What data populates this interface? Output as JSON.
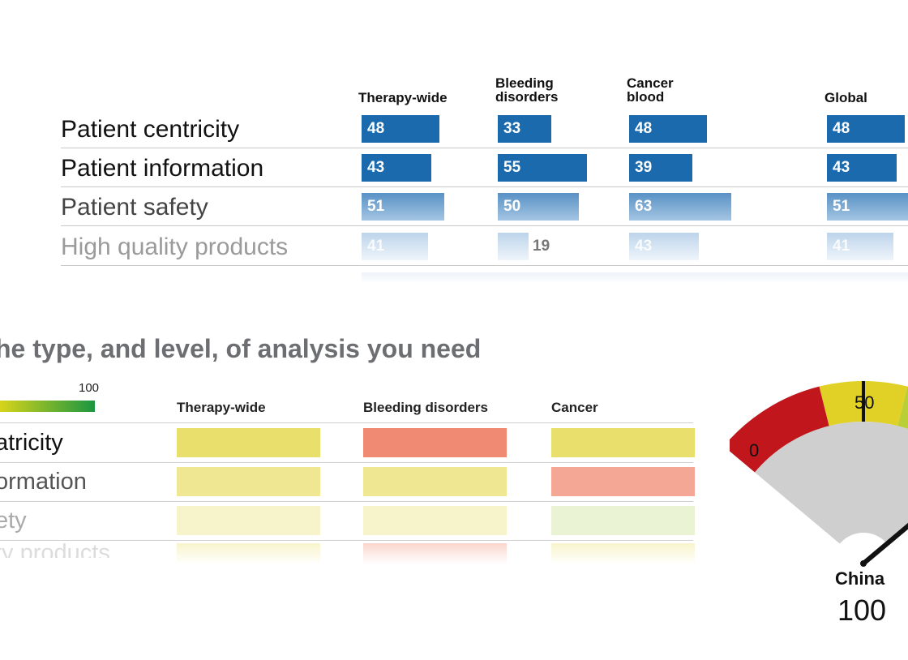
{
  "chart_data": [
    {
      "type": "bar",
      "columns": [
        "Therapy-wide",
        "Bleeding\ndisorders",
        "Cancer\nblood",
        "Global"
      ],
      "categories": [
        "Patient centricity",
        "Patient information",
        "Patient safety",
        "High quality products"
      ],
      "series": [
        {
          "name": "Therapy-wide",
          "values": [
            48,
            43,
            51,
            41
          ]
        },
        {
          "name": "Bleeding\ndisorders",
          "values": [
            33,
            55,
            50,
            19
          ]
        },
        {
          "name": "Cancer\nblood",
          "values": [
            48,
            39,
            63,
            43
          ]
        },
        {
          "name": "Global",
          "values": [
            48,
            43,
            51,
            41
          ]
        }
      ],
      "bar_color": "#1a6aad"
    },
    {
      "type": "heatmap",
      "title": "he type, and level, of analysis you need",
      "legend_max": "100",
      "columns": [
        "Therapy-wide",
        "Bleeding disorders",
        "Cancer"
      ],
      "rows": [
        "atricity",
        "ormation",
        "ety",
        "ty products"
      ],
      "cells": [
        [
          "#e9df6d",
          "#f08a72",
          "#e9df6d"
        ],
        [
          "#e9df6d",
          "#e9df6d",
          "#f08a72"
        ],
        [
          "#e9df6d",
          "#e9df6d",
          "#c5de86"
        ],
        [
          "#e9df6d",
          "#f08a72",
          "#e9df6d"
        ]
      ]
    },
    {
      "type": "gauge",
      "tick_labels": [
        "0",
        "50"
      ],
      "label": "China",
      "value": "100",
      "zone_colors": [
        "#c0161c",
        "#e1d126",
        "#b9cf35"
      ],
      "needle_value": 100
    }
  ]
}
